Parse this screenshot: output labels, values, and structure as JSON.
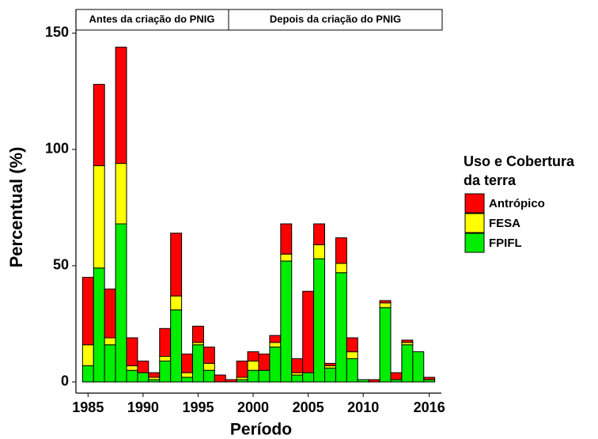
{
  "chart_data": {
    "type": "stacked_bar",
    "x_label": "Período",
    "y_label": "Percentual (%)",
    "legend_title": [
      "Uso e Cobertura",
      "da terra"
    ],
    "annotations": [
      "Antes da criação do PNIG",
      "Depois da criação do PNIG"
    ],
    "categories": [
      "1985",
      null,
      null,
      null,
      null,
      "1990",
      null,
      null,
      null,
      null,
      "1995",
      null,
      null,
      null,
      null,
      "2000",
      null,
      null,
      null,
      null,
      "2005",
      null,
      null,
      null,
      null,
      "2010",
      null,
      null,
      null,
      null,
      null,
      "2016"
    ],
    "series": [
      {
        "name": "Antrópico",
        "color": "#ff0000",
        "values": [
          29,
          35,
          21,
          50,
          12,
          5,
          2,
          12,
          27,
          8,
          7,
          7,
          3,
          1,
          7,
          4,
          7,
          3,
          13,
          6,
          35,
          9,
          1,
          11,
          6,
          0,
          1,
          1,
          3,
          1,
          0,
          1
        ]
      },
      {
        "name": "FESA",
        "color": "#ffff00",
        "values": [
          9,
          44,
          3,
          26,
          2,
          0,
          1,
          2,
          6,
          2,
          1,
          3,
          0,
          0,
          1,
          4,
          0,
          2,
          3,
          1,
          0,
          6,
          1,
          4,
          3,
          0,
          0,
          2,
          0,
          1,
          0,
          0
        ]
      },
      {
        "name": "FPIFL",
        "color": "#00ee00",
        "values": [
          7,
          49,
          16,
          68,
          5,
          4,
          1,
          9,
          31,
          2,
          16,
          5,
          0,
          0,
          1,
          5,
          5,
          15,
          52,
          3,
          4,
          53,
          6,
          47,
          10,
          1,
          0,
          32,
          1,
          16,
          13,
          1
        ]
      }
    ],
    "ylim": [
      -4.8,
      160.2
    ],
    "yticks": [
      0,
      50,
      100,
      150
    ]
  }
}
